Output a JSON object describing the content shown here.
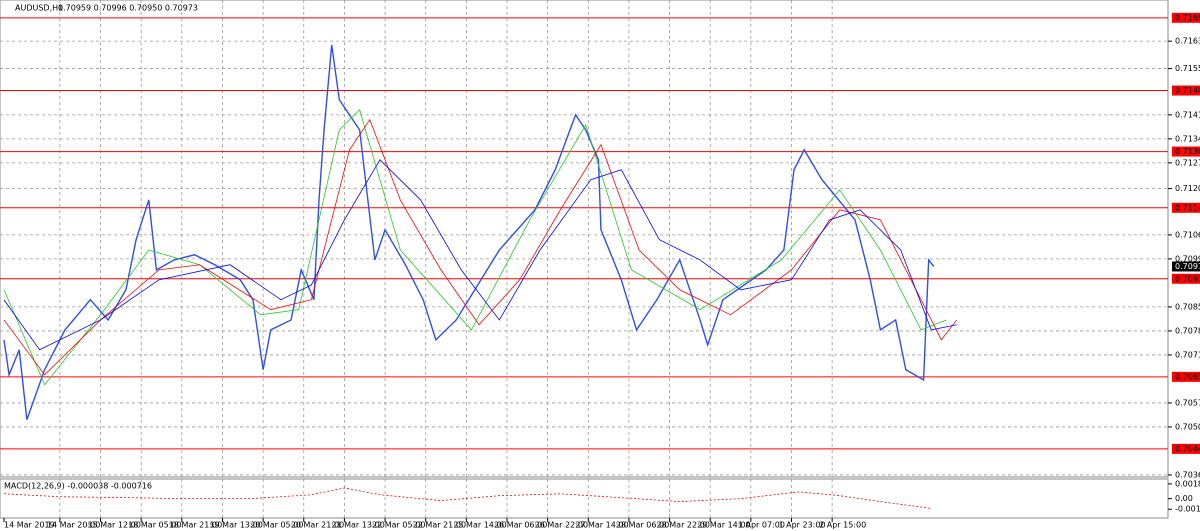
{
  "chart_data": [
    {
      "type": "line",
      "symbol": "AUDUSD,H1",
      "ohlc": "0.70959 0.70996 0.70950 0.70973",
      "xlim": [
        0,
        459
      ],
      "ylim": [
        0.70359,
        0.7175
      ],
      "grid": true,
      "xticks": [
        {
          "value": 0,
          "label": "14 Mar 2019"
        },
        {
          "value": 22,
          "label": "14 Mar 20:00"
        },
        {
          "value": 38,
          "label": "15 Mar 12:00"
        },
        {
          "value": 54,
          "label": "18 Mar 05:00"
        },
        {
          "value": 70,
          "label": "18 Mar 21:00"
        },
        {
          "value": 86,
          "label": "19 Mar 13:00"
        },
        {
          "value": 102,
          "label": "20 Mar 05:00"
        },
        {
          "value": 118,
          "label": "20 Mar 21:00"
        },
        {
          "value": 134,
          "label": "21 Mar 13:00"
        },
        {
          "value": 150,
          "label": "22 Mar 05:00"
        },
        {
          "value": 166,
          "label": "22 Mar 21:00"
        },
        {
          "value": 182,
          "label": "25 Mar 14:00"
        },
        {
          "value": 198,
          "label": "26 Mar 06:00"
        },
        {
          "value": 214,
          "label": "26 Mar 22:00"
        },
        {
          "value": 230,
          "label": "27 Mar 14:00"
        },
        {
          "value": 246,
          "label": "28 Mar 06:00"
        },
        {
          "value": 262,
          "label": "28 Mar 22:00"
        },
        {
          "value": 278,
          "label": "29 Mar 14:00"
        },
        {
          "value": 294,
          "label": "1 Apr 07:00"
        },
        {
          "value": 310,
          "label": "1 Apr 23:00"
        },
        {
          "value": 326,
          "label": "2 Apr 15:00"
        }
      ],
      "yticks": [
        {
          "value": 0.7163,
          "label": "0.71630"
        },
        {
          "value": 0.7155,
          "label": "0.71550"
        },
        0.71415,
        0.71345,
        0.71275,
        {
          "value": 0.712,
          "label": "0.71200"
        },
        0.71065,
        0.70995,
        0.70855,
        0.70785,
        0.70715,
        0.70575,
        0.70505,
        0.70365
      ],
      "levels": [
        0.71698,
        0.71486,
        {
          "value": 0.71308,
          "label": "0.71308"
        },
        0.71144,
        0.70937,
        0.70651,
        0.70441
      ],
      "level_color": "#ff0000",
      "current_price": 0.70973,
      "series": [
        {
          "color": "#2f4ee8",
          "width": 1.4,
          "x": [
            0,
            2,
            6,
            9,
            16,
            24,
            34,
            41,
            48,
            52,
            57,
            60,
            67,
            75,
            83,
            93,
            98,
            102,
            105,
            113,
            117,
            122,
            124,
            126,
            129,
            132,
            140,
            146,
            150,
            158,
            165,
            170,
            178,
            195,
            209,
            217,
            225,
            229,
            234,
            235,
            243,
            249,
            257,
            266,
            274,
            277,
            283,
            300,
            307,
            311,
            315,
            322,
            335,
            341,
            345,
            351,
            355,
            362,
            364,
            366
          ],
          "values": [
            0.70759,
            0.70657,
            0.7073,
            0.70526,
            0.70672,
            0.70788,
            0.70876,
            0.70817,
            0.70905,
            0.71051,
            0.71167,
            0.70963,
            0.70992,
            0.71007,
            0.70978,
            0.70934,
            0.70876,
            0.70672,
            0.70788,
            0.70817,
            0.70963,
            0.70876,
            0.71167,
            0.71371,
            0.71619,
            0.71459,
            0.71371,
            0.70992,
            0.7108,
            0.70978,
            0.70876,
            0.70759,
            0.70817,
            0.71021,
            0.71138,
            0.71255,
            0.71415,
            0.71371,
            0.71284,
            0.7108,
            0.70934,
            0.70788,
            0.70876,
            0.70992,
            0.70817,
            0.70744,
            0.70876,
            0.70963,
            0.71021,
            0.71255,
            0.71313,
            0.71226,
            0.71109,
            0.70934,
            0.70788,
            0.70817,
            0.70672,
            0.70642,
            0.70992,
            0.70973
          ]
        },
        {
          "color": "#22cc22",
          "width": 0.8,
          "x": [
            0,
            16,
            38,
            57,
            77,
            101,
            116,
            132,
            140,
            156,
            184,
            207,
            229,
            247,
            274,
            306,
            329,
            345,
            361,
            371
          ],
          "values": [
            0.70905,
            0.70628,
            0.70832,
            0.71021,
            0.70978,
            0.70832,
            0.70847,
            0.71371,
            0.7143,
            0.71021,
            0.70788,
            0.71109,
            0.71386,
            0.70963,
            0.70847,
            0.70992,
            0.71196,
            0.71021,
            0.70788,
            0.70817
          ]
        },
        {
          "color": "#ff0000",
          "width": 0.8,
          "x": [
            0,
            16,
            38,
            61,
            77,
            105,
            121,
            136,
            144,
            156,
            172,
            187,
            203,
            219,
            235,
            250,
            266,
            286,
            310,
            329,
            345,
            361,
            369,
            375
          ],
          "values": [
            0.70817,
            0.70657,
            0.70817,
            0.70963,
            0.70978,
            0.70847,
            0.70876,
            0.71313,
            0.71401,
            0.71167,
            0.70963,
            0.70803,
            0.70934,
            0.71138,
            0.71328,
            0.71021,
            0.70905,
            0.70832,
            0.70963,
            0.71138,
            0.71109,
            0.70876,
            0.70759,
            0.70817
          ]
        },
        {
          "color": "#0000ff",
          "width": 0.8,
          "x": [
            0,
            14,
            38,
            61,
            89,
            109,
            121,
            134,
            148,
            164,
            180,
            195,
            211,
            231,
            243,
            258,
            274,
            290,
            310,
            325,
            337,
            353,
            365,
            375
          ],
          "values": [
            0.70876,
            0.7073,
            0.70817,
            0.70934,
            0.70978,
            0.70876,
            0.70919,
            0.71109,
            0.71284,
            0.71167,
            0.70963,
            0.70817,
            0.71021,
            0.71226,
            0.71255,
            0.71051,
            0.70992,
            0.70905,
            0.70934,
            0.71109,
            0.71138,
            0.71021,
            0.70788,
            0.70803
          ]
        }
      ]
    },
    {
      "type": "line",
      "title": "MACD(12,26,9) -0.000038 -0.000716",
      "ylim": [
        -0.00242,
        0.00246
      ],
      "yticks": [
        0.00185,
        {
          "value": 0,
          "label": "0.00"
        },
        -0.00132
      ],
      "series": [
        {
          "color": "#ff0000",
          "dashed": true,
          "width": 0.8,
          "x": [
            0,
            22,
            50,
            69,
            97,
            121,
            134,
            148,
            172,
            195,
            219,
            243,
            266,
            290,
            313,
            329,
            345,
            365
          ],
          "values": [
            0.00061,
            0.00024,
            0.00012,
            0,
            0,
            0.00049,
            0.00134,
            0.00049,
            -0.00024,
            0.00037,
            0.00061,
            0.00012,
            -0.00037,
            0,
            0.00085,
            0.00037,
            -0.00037,
            -0.00122
          ]
        }
      ]
    }
  ]
}
